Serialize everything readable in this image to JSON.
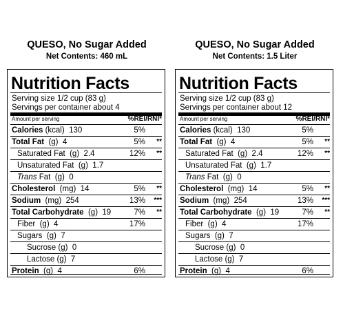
{
  "panels": [
    {
      "product": "QUESO, No Sugar Added",
      "net": "Net Contents:  460 mL",
      "title": "Nutrition Facts",
      "serving_size": "Serving size 1/2 cup  (83 g)",
      "servings": "Servings per container  about 4",
      "amount_per": "Amount per serving",
      "pct_header": "%REI/RNI*",
      "rows": [
        {
          "name": "Calories",
          "unit": " (kcal)  130",
          "pct": "5%",
          "ast": ""
        },
        {
          "name": "Total Fat",
          "unit": "  (g)  4",
          "pct": "5%",
          "ast": "**"
        },
        {
          "name": "",
          "unit": "Saturated Fat  (g)  2.4",
          "pct": "12%",
          "ast": "**"
        },
        {
          "name": "",
          "unit": "Unsaturated Fat  (g)  1.7",
          "pct": "",
          "ast": ""
        },
        {
          "name": "",
          "italic": "Trans",
          "unit": " Fat  (g)  0",
          "pct": "",
          "ast": ""
        },
        {
          "name": "Cholesterol",
          "unit": "  (mg)  14",
          "pct": "5%",
          "ast": "**"
        },
        {
          "name": "Sodium",
          "unit": "  (mg)  254",
          "pct": "13%",
          "ast": "***"
        },
        {
          "name": "Total Carbohydrate",
          "unit": "  (g)  19",
          "pct": "7%",
          "ast": "**"
        },
        {
          "name": "",
          "unit": "Fiber  (g)  4",
          "pct": "17%",
          "ast": ""
        },
        {
          "name": "",
          "unit": "Sugars  (g)  7",
          "pct": "",
          "ast": ""
        },
        {
          "name": "",
          "unit": "Sucrose (g)  0",
          "pct": "",
          "ast": ""
        },
        {
          "name": "",
          "unit": "Lactose (g)  7",
          "pct": "",
          "ast": ""
        },
        {
          "name": "Protein",
          "unit": "  (g)  4",
          "pct": "6%",
          "ast": ""
        }
      ]
    },
    {
      "product": "QUESO, No Sugar Added",
      "net": "Net Contents:  1.5 Liter",
      "title": "Nutrition Facts",
      "serving_size": "Serving size 1/2 cup  (83 g)",
      "servings": "Servings per container  about 12",
      "amount_per": "Amount per serving",
      "pct_header": "%REI/RNI*",
      "rows": [
        {
          "name": "Calories",
          "unit": " (kcal)  130",
          "pct": "5%",
          "ast": ""
        },
        {
          "name": "Total Fat",
          "unit": "  (g)  4",
          "pct": "5%",
          "ast": "**"
        },
        {
          "name": "",
          "unit": "Saturated Fat  (g)  2.4",
          "pct": "12%",
          "ast": "**"
        },
        {
          "name": "",
          "unit": "Unsaturated Fat  (g)  1.7",
          "pct": "",
          "ast": ""
        },
        {
          "name": "",
          "italic": "Trans",
          "unit": " Fat  (g)  0",
          "pct": "",
          "ast": ""
        },
        {
          "name": "Cholesterol",
          "unit": "  (mg)  14",
          "pct": "5%",
          "ast": "**"
        },
        {
          "name": "Sodium",
          "unit": "  (mg)  254",
          "pct": "13%",
          "ast": "***"
        },
        {
          "name": "Total Carbohydrate",
          "unit": "  (g)  19",
          "pct": "7%",
          "ast": "**"
        },
        {
          "name": "",
          "unit": "Fiber  (g)  4",
          "pct": "17%",
          "ast": ""
        },
        {
          "name": "",
          "unit": "Sugars  (g)  7",
          "pct": "",
          "ast": ""
        },
        {
          "name": "",
          "unit": "Sucrose (g)  0",
          "pct": "",
          "ast": ""
        },
        {
          "name": "",
          "unit": "Lactose (g)  7",
          "pct": "",
          "ast": ""
        },
        {
          "name": "Protein",
          "unit": "  (g)  4",
          "pct": "6%",
          "ast": ""
        }
      ]
    }
  ]
}
